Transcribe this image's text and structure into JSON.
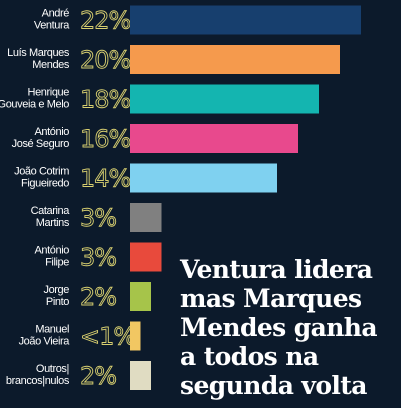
{
  "headline": {
    "lines": [
      "Ventura lidera",
      "mas Marques",
      "Mendes ganha",
      "a todos na",
      "segunda volta"
    ]
  },
  "chart_data": {
    "type": "bar",
    "orientation": "horizontal",
    "categories": [
      [
        "André",
        "Ventura"
      ],
      [
        "Luís Marques",
        "Mendes"
      ],
      [
        "Henrique",
        "Gouveia e Melo"
      ],
      [
        "António",
        "José Seguro"
      ],
      [
        "João Cotrim",
        "Figueiredo"
      ],
      [
        "Catarina",
        "Martins"
      ],
      [
        "António",
        "Filipe"
      ],
      [
        "Jorge",
        "Pinto"
      ],
      [
        "Manuel",
        "João Vieira"
      ],
      [
        "Outros|",
        "brancos|nulos"
      ]
    ],
    "values": [
      22,
      20,
      18,
      16,
      14,
      3,
      3,
      2,
      1,
      2
    ],
    "value_labels": [
      "22%",
      "20%",
      "18%",
      "16%",
      "14%",
      "3%",
      "3%",
      "2%",
      "<1%",
      "2%"
    ],
    "colors": [
      "#173f6e",
      "#f59a4d",
      "#14b5b0",
      "#e8498d",
      "#7fd1f0",
      "#808080",
      "#e84a3c",
      "#a6c44a",
      "#f2c762",
      "#e0dcc2"
    ],
    "title": "",
    "xlabel": "",
    "ylabel": "",
    "grid": false,
    "legend": "none"
  }
}
